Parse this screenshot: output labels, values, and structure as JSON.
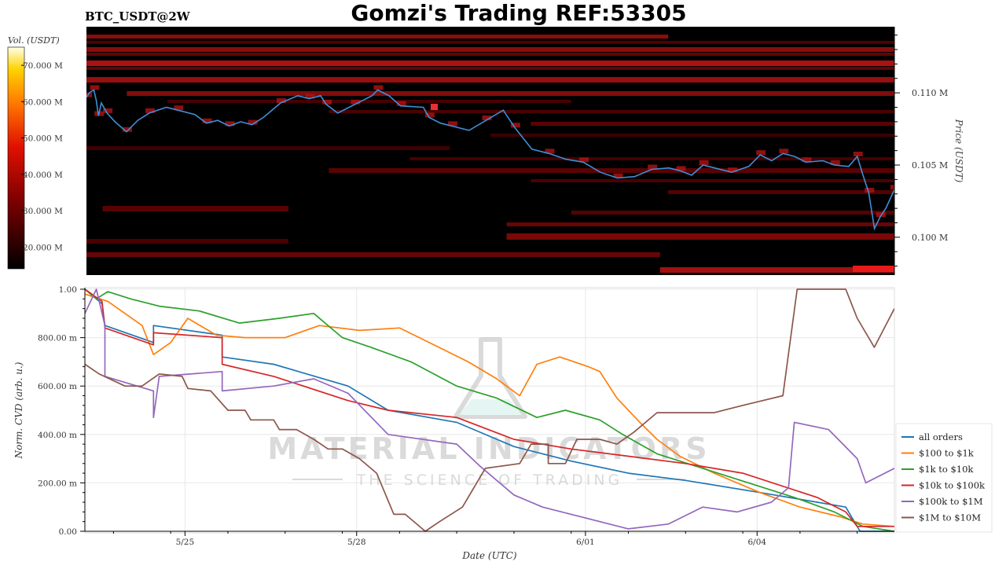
{
  "title": "Gomzi's Trading REF:53305",
  "symbol": "BTC_USDT@2W",
  "watermark": {
    "line1": "MATERIAL INDICATORS",
    "line2": "THE SCIENCE OF TRADING"
  },
  "colors": {
    "all orders": "#1f77b4",
    "$100 to $1k": "#ff7f0e",
    "$1k to $10k": "#2ca02c",
    "$10k to $100k": "#d62728",
    "$100k to $1M": "#9467bd",
    "$1M to $10M": "#8c564b",
    "price_line": "#3f8fd6"
  },
  "chart_data": [
    {
      "type": "heatmap",
      "colorbar_label": "Vol. (USDT)",
      "colorbar_ticks": [
        "70.000 M",
        "60.000 M",
        "50.000 M",
        "40.000 M",
        "30.000 M",
        "20.000 M"
      ],
      "colorbar_tick_values": [
        70000000,
        60000000,
        50000000,
        40000000,
        30000000,
        20000000
      ],
      "colorbar_range": [
        14000000,
        75000000
      ],
      "ylabel": "Price (USDT)",
      "y_ticks": [
        "0.110 M",
        "0.105 M",
        "0.100 M"
      ],
      "y_tick_values": [
        110000,
        105000,
        100000
      ],
      "ylim": [
        97380,
        114580
      ],
      "x_range_days": [
        0,
        14.15
      ],
      "price_series": [
        {
          "x": 0.0,
          "y": 109700
        },
        {
          "x": 0.05,
          "y": 110000
        },
        {
          "x": 0.13,
          "y": 110200
        },
        {
          "x": 0.17,
          "y": 109500
        },
        {
          "x": 0.21,
          "y": 108400
        },
        {
          "x": 0.26,
          "y": 109300
        },
        {
          "x": 0.36,
          "y": 108600
        },
        {
          "x": 0.5,
          "y": 108000
        },
        {
          "x": 0.7,
          "y": 107300
        },
        {
          "x": 0.9,
          "y": 108100
        },
        {
          "x": 1.1,
          "y": 108600
        },
        {
          "x": 1.4,
          "y": 109000
        },
        {
          "x": 1.6,
          "y": 108800
        },
        {
          "x": 1.9,
          "y": 108500
        },
        {
          "x": 2.1,
          "y": 107900
        },
        {
          "x": 2.3,
          "y": 108100
        },
        {
          "x": 2.5,
          "y": 107700
        },
        {
          "x": 2.7,
          "y": 108000
        },
        {
          "x": 2.9,
          "y": 107800
        },
        {
          "x": 3.1,
          "y": 108300
        },
        {
          "x": 3.4,
          "y": 109300
        },
        {
          "x": 3.7,
          "y": 109800
        },
        {
          "x": 3.9,
          "y": 109600
        },
        {
          "x": 4.1,
          "y": 109800
        },
        {
          "x": 4.2,
          "y": 109200
        },
        {
          "x": 4.4,
          "y": 108600
        },
        {
          "x": 4.7,
          "y": 109200
        },
        {
          "x": 5.0,
          "y": 109800
        },
        {
          "x": 5.1,
          "y": 110200
        },
        {
          "x": 5.3,
          "y": 109800
        },
        {
          "x": 5.5,
          "y": 109100
        },
        {
          "x": 5.9,
          "y": 109000
        },
        {
          "x": 6.0,
          "y": 108300
        },
        {
          "x": 6.2,
          "y": 107900
        },
        {
          "x": 6.4,
          "y": 107700
        },
        {
          "x": 6.7,
          "y": 107400
        },
        {
          "x": 7.0,
          "y": 108100
        },
        {
          "x": 7.3,
          "y": 108800
        },
        {
          "x": 7.5,
          "y": 107600
        },
        {
          "x": 7.8,
          "y": 106100
        },
        {
          "x": 8.1,
          "y": 105800
        },
        {
          "x": 8.4,
          "y": 105400
        },
        {
          "x": 8.7,
          "y": 105200
        },
        {
          "x": 9.0,
          "y": 104500
        },
        {
          "x": 9.3,
          "y": 104100
        },
        {
          "x": 9.6,
          "y": 104200
        },
        {
          "x": 9.9,
          "y": 104700
        },
        {
          "x": 10.2,
          "y": 104800
        },
        {
          "x": 10.4,
          "y": 104600
        },
        {
          "x": 10.6,
          "y": 104300
        },
        {
          "x": 10.8,
          "y": 105000
        },
        {
          "x": 11.0,
          "y": 104800
        },
        {
          "x": 11.3,
          "y": 104500
        },
        {
          "x": 11.6,
          "y": 104900
        },
        {
          "x": 11.8,
          "y": 105700
        },
        {
          "x": 12.0,
          "y": 105300
        },
        {
          "x": 12.2,
          "y": 105800
        },
        {
          "x": 12.4,
          "y": 105600
        },
        {
          "x": 12.6,
          "y": 105200
        },
        {
          "x": 12.9,
          "y": 105300
        },
        {
          "x": 13.1,
          "y": 105000
        },
        {
          "x": 13.35,
          "y": 104900
        },
        {
          "x": 13.5,
          "y": 105600
        },
        {
          "x": 13.6,
          "y": 104300
        },
        {
          "x": 13.7,
          "y": 103100
        },
        {
          "x": 13.8,
          "y": 100600
        },
        {
          "x": 13.9,
          "y": 101400
        },
        {
          "x": 14.0,
          "y": 102000
        },
        {
          "x": 14.15,
          "y": 103300
        }
      ]
    },
    {
      "type": "line",
      "xlabel": "Date (UTC)",
      "ylabel": "Norm. CVD (arb. u.)",
      "ylim": [
        0,
        1
      ],
      "y_ticks": [
        "0.00",
        "200.00 m",
        "400.00 m",
        "600.00 m",
        "800.00 m",
        "1.00"
      ],
      "y_tick_values": [
        0,
        0.2,
        0.4,
        0.6,
        0.8,
        1.0
      ],
      "x_range_days": [
        0,
        14.15
      ],
      "x_ticks": [
        {
          "label": "5/25",
          "value": 1.75
        },
        {
          "label": "5/28",
          "value": 4.75
        },
        {
          "label": "6/01",
          "value": 8.75
        },
        {
          "label": "6/04",
          "value": 11.75
        }
      ],
      "legend_position": "bottom-right",
      "series": [
        {
          "name": "all orders",
          "points": [
            {
              "x": 0.0,
              "y": 1.0
            },
            {
              "x": 0.3,
              "y": 0.94
            },
            {
              "x": 0.35,
              "y": 0.85
            },
            {
              "x": 1.2,
              "y": 0.78
            },
            {
              "x": 1.2,
              "y": 0.85
            },
            {
              "x": 2.4,
              "y": 0.81
            },
            {
              "x": 2.4,
              "y": 0.72
            },
            {
              "x": 3.3,
              "y": 0.69
            },
            {
              "x": 4.6,
              "y": 0.6
            },
            {
              "x": 5.3,
              "y": 0.5
            },
            {
              "x": 6.5,
              "y": 0.45
            },
            {
              "x": 7.5,
              "y": 0.35
            },
            {
              "x": 8.5,
              "y": 0.29
            },
            {
              "x": 9.5,
              "y": 0.24
            },
            {
              "x": 10.5,
              "y": 0.21
            },
            {
              "x": 11.8,
              "y": 0.16
            },
            {
              "x": 12.8,
              "y": 0.12
            },
            {
              "x": 13.3,
              "y": 0.1
            },
            {
              "x": 13.55,
              "y": 0.0
            },
            {
              "x": 14.15,
              "y": 0.0
            }
          ]
        },
        {
          "name": "$100 to $1k",
          "points": [
            {
              "x": 0.0,
              "y": 0.98
            },
            {
              "x": 0.4,
              "y": 0.95
            },
            {
              "x": 1.0,
              "y": 0.85
            },
            {
              "x": 1.2,
              "y": 0.73
            },
            {
              "x": 1.5,
              "y": 0.78
            },
            {
              "x": 1.8,
              "y": 0.88
            },
            {
              "x": 2.3,
              "y": 0.81
            },
            {
              "x": 2.8,
              "y": 0.8
            },
            {
              "x": 3.5,
              "y": 0.8
            },
            {
              "x": 4.1,
              "y": 0.85
            },
            {
              "x": 4.8,
              "y": 0.83
            },
            {
              "x": 5.5,
              "y": 0.84
            },
            {
              "x": 6.1,
              "y": 0.77
            },
            {
              "x": 6.7,
              "y": 0.7
            },
            {
              "x": 7.2,
              "y": 0.63
            },
            {
              "x": 7.6,
              "y": 0.56
            },
            {
              "x": 7.9,
              "y": 0.69
            },
            {
              "x": 8.3,
              "y": 0.72
            },
            {
              "x": 8.8,
              "y": 0.68
            },
            {
              "x": 9.0,
              "y": 0.66
            },
            {
              "x": 9.3,
              "y": 0.55
            },
            {
              "x": 9.7,
              "y": 0.45
            },
            {
              "x": 10.0,
              "y": 0.38
            },
            {
              "x": 10.4,
              "y": 0.31
            },
            {
              "x": 11.0,
              "y": 0.24
            },
            {
              "x": 11.8,
              "y": 0.16
            },
            {
              "x": 12.5,
              "y": 0.1
            },
            {
              "x": 13.2,
              "y": 0.06
            },
            {
              "x": 13.6,
              "y": 0.03
            },
            {
              "x": 14.15,
              "y": 0.02
            }
          ]
        },
        {
          "name": "$1k to $10k",
          "points": [
            {
              "x": 0.0,
              "y": 1.0
            },
            {
              "x": 0.2,
              "y": 0.96
            },
            {
              "x": 0.4,
              "y": 0.99
            },
            {
              "x": 0.8,
              "y": 0.96
            },
            {
              "x": 1.3,
              "y": 0.93
            },
            {
              "x": 2.0,
              "y": 0.91
            },
            {
              "x": 2.7,
              "y": 0.86
            },
            {
              "x": 3.4,
              "y": 0.88
            },
            {
              "x": 4.0,
              "y": 0.9
            },
            {
              "x": 4.5,
              "y": 0.8
            },
            {
              "x": 5.0,
              "y": 0.76
            },
            {
              "x": 5.7,
              "y": 0.7
            },
            {
              "x": 6.5,
              "y": 0.6
            },
            {
              "x": 7.2,
              "y": 0.55
            },
            {
              "x": 7.9,
              "y": 0.47
            },
            {
              "x": 8.4,
              "y": 0.5
            },
            {
              "x": 9.0,
              "y": 0.46
            },
            {
              "x": 9.4,
              "y": 0.4
            },
            {
              "x": 10.0,
              "y": 0.32
            },
            {
              "x": 10.8,
              "y": 0.26
            },
            {
              "x": 11.6,
              "y": 0.2
            },
            {
              "x": 12.4,
              "y": 0.14
            },
            {
              "x": 13.1,
              "y": 0.08
            },
            {
              "x": 13.6,
              "y": 0.02
            },
            {
              "x": 14.15,
              "y": 0.0
            }
          ]
        },
        {
          "name": "$10k to $100k",
          "points": [
            {
              "x": 0.0,
              "y": 1.0
            },
            {
              "x": 0.3,
              "y": 0.95
            },
            {
              "x": 0.35,
              "y": 0.84
            },
            {
              "x": 1.2,
              "y": 0.77
            },
            {
              "x": 1.2,
              "y": 0.82
            },
            {
              "x": 2.4,
              "y": 0.8
            },
            {
              "x": 2.4,
              "y": 0.69
            },
            {
              "x": 3.3,
              "y": 0.64
            },
            {
              "x": 4.6,
              "y": 0.54
            },
            {
              "x": 5.3,
              "y": 0.5
            },
            {
              "x": 6.5,
              "y": 0.47
            },
            {
              "x": 7.5,
              "y": 0.38
            },
            {
              "x": 8.5,
              "y": 0.34
            },
            {
              "x": 9.5,
              "y": 0.31
            },
            {
              "x": 10.5,
              "y": 0.28
            },
            {
              "x": 11.5,
              "y": 0.24
            },
            {
              "x": 12.8,
              "y": 0.14
            },
            {
              "x": 13.3,
              "y": 0.08
            },
            {
              "x": 13.5,
              "y": 0.02
            },
            {
              "x": 14.15,
              "y": 0.02
            }
          ]
        },
        {
          "name": "$100k to $1M",
          "points": [
            {
              "x": 0.0,
              "y": 0.9
            },
            {
              "x": 0.2,
              "y": 1.0
            },
            {
              "x": 0.35,
              "y": 0.85
            },
            {
              "x": 0.35,
              "y": 0.64
            },
            {
              "x": 1.2,
              "y": 0.58
            },
            {
              "x": 1.2,
              "y": 0.47
            },
            {
              "x": 1.3,
              "y": 0.64
            },
            {
              "x": 2.4,
              "y": 0.66
            },
            {
              "x": 2.4,
              "y": 0.58
            },
            {
              "x": 3.3,
              "y": 0.6
            },
            {
              "x": 4.0,
              "y": 0.63
            },
            {
              "x": 4.6,
              "y": 0.57
            },
            {
              "x": 5.3,
              "y": 0.4
            },
            {
              "x": 6.5,
              "y": 0.36
            },
            {
              "x": 6.9,
              "y": 0.27
            },
            {
              "x": 7.5,
              "y": 0.15
            },
            {
              "x": 8.0,
              "y": 0.1
            },
            {
              "x": 8.5,
              "y": 0.07
            },
            {
              "x": 9.0,
              "y": 0.04
            },
            {
              "x": 9.5,
              "y": 0.01
            },
            {
              "x": 10.2,
              "y": 0.03
            },
            {
              "x": 10.8,
              "y": 0.1
            },
            {
              "x": 11.4,
              "y": 0.08
            },
            {
              "x": 12.0,
              "y": 0.12
            },
            {
              "x": 12.3,
              "y": 0.18
            },
            {
              "x": 12.4,
              "y": 0.45
            },
            {
              "x": 13.0,
              "y": 0.42
            },
            {
              "x": 13.5,
              "y": 0.3
            },
            {
              "x": 13.65,
              "y": 0.2
            },
            {
              "x": 14.15,
              "y": 0.26
            }
          ]
        },
        {
          "name": "$1M to $10M",
          "points": [
            {
              "x": 0.0,
              "y": 0.69
            },
            {
              "x": 0.25,
              "y": 0.65
            },
            {
              "x": 0.7,
              "y": 0.6
            },
            {
              "x": 1.0,
              "y": 0.6
            },
            {
              "x": 1.3,
              "y": 0.65
            },
            {
              "x": 1.7,
              "y": 0.64
            },
            {
              "x": 1.8,
              "y": 0.59
            },
            {
              "x": 2.2,
              "y": 0.58
            },
            {
              "x": 2.5,
              "y": 0.5
            },
            {
              "x": 2.8,
              "y": 0.5
            },
            {
              "x": 2.9,
              "y": 0.46
            },
            {
              "x": 3.3,
              "y": 0.46
            },
            {
              "x": 3.4,
              "y": 0.42
            },
            {
              "x": 3.7,
              "y": 0.42
            },
            {
              "x": 4.0,
              "y": 0.38
            },
            {
              "x": 4.25,
              "y": 0.34
            },
            {
              "x": 4.5,
              "y": 0.34
            },
            {
              "x": 4.8,
              "y": 0.3
            },
            {
              "x": 5.1,
              "y": 0.24
            },
            {
              "x": 5.4,
              "y": 0.07
            },
            {
              "x": 5.6,
              "y": 0.07
            },
            {
              "x": 5.95,
              "y": 0.0
            },
            {
              "x": 6.2,
              "y": 0.04
            },
            {
              "x": 6.6,
              "y": 0.1
            },
            {
              "x": 7.0,
              "y": 0.26
            },
            {
              "x": 7.6,
              "y": 0.28
            },
            {
              "x": 7.8,
              "y": 0.36
            },
            {
              "x": 8.1,
              "y": 0.36
            },
            {
              "x": 8.1,
              "y": 0.28
            },
            {
              "x": 8.4,
              "y": 0.28
            },
            {
              "x": 8.6,
              "y": 0.38
            },
            {
              "x": 9.0,
              "y": 0.38
            },
            {
              "x": 9.3,
              "y": 0.36
            },
            {
              "x": 9.6,
              "y": 0.41
            },
            {
              "x": 10.0,
              "y": 0.49
            },
            {
              "x": 11.0,
              "y": 0.49
            },
            {
              "x": 11.5,
              "y": 0.52
            },
            {
              "x": 12.2,
              "y": 0.56
            },
            {
              "x": 12.45,
              "y": 1.0
            },
            {
              "x": 13.3,
              "y": 1.0
            },
            {
              "x": 13.5,
              "y": 0.88
            },
            {
              "x": 13.8,
              "y": 0.76
            },
            {
              "x": 14.15,
              "y": 0.92
            }
          ]
        }
      ]
    }
  ]
}
